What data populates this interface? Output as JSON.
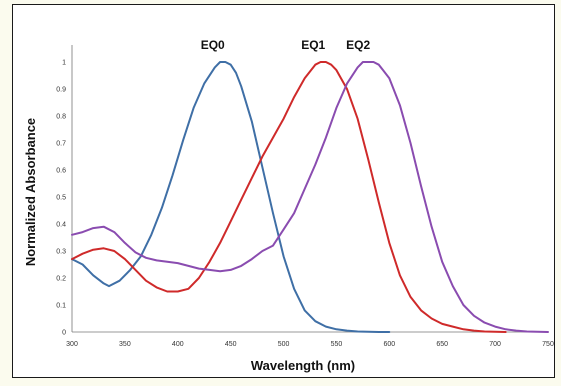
{
  "chart_data": {
    "type": "line",
    "title": "",
    "xlabel": "Wavelength (nm)",
    "ylabel": "Normalized Absorbance",
    "xlim": [
      300,
      750
    ],
    "ylim": [
      0,
      1.0
    ],
    "xticks": [
      "300",
      "350",
      "400",
      "450",
      "500",
      "550",
      "600",
      "650",
      "700",
      "750"
    ],
    "yticks": [
      "0",
      "0.1",
      "0.2",
      "0.3",
      "0.4",
      "0.5",
      "0.6",
      "0.7",
      "0.8",
      "0.9",
      "1"
    ],
    "grid": false,
    "series": [
      {
        "name": "EQ0",
        "color": "#3f6fa6",
        "x": [
          300,
          310,
          320,
          330,
          335,
          345,
          355,
          365,
          375,
          385,
          395,
          405,
          415,
          425,
          435,
          440,
          445,
          450,
          455,
          460,
          470,
          480,
          490,
          500,
          510,
          520,
          530,
          540,
          550,
          560,
          570,
          580,
          590,
          600
        ],
        "y": [
          0.27,
          0.25,
          0.21,
          0.18,
          0.17,
          0.19,
          0.23,
          0.28,
          0.36,
          0.46,
          0.58,
          0.71,
          0.83,
          0.92,
          0.98,
          1.0,
          1.0,
          0.99,
          0.96,
          0.91,
          0.78,
          0.61,
          0.44,
          0.28,
          0.16,
          0.08,
          0.04,
          0.02,
          0.01,
          0.005,
          0.002,
          0.001,
          0.0,
          0.0
        ]
      },
      {
        "name": "EQ1",
        "color": "#cf2a2a",
        "x": [
          300,
          310,
          320,
          330,
          340,
          350,
          360,
          370,
          380,
          390,
          400,
          410,
          420,
          430,
          440,
          450,
          460,
          470,
          480,
          490,
          500,
          510,
          520,
          530,
          535,
          540,
          545,
          550,
          560,
          570,
          580,
          590,
          600,
          610,
          620,
          630,
          640,
          650,
          660,
          670,
          680,
          690,
          700,
          710
        ],
        "y": [
          0.27,
          0.29,
          0.305,
          0.31,
          0.3,
          0.27,
          0.23,
          0.19,
          0.165,
          0.15,
          0.15,
          0.16,
          0.2,
          0.26,
          0.33,
          0.41,
          0.49,
          0.57,
          0.65,
          0.72,
          0.79,
          0.87,
          0.94,
          0.99,
          1.0,
          1.0,
          0.99,
          0.97,
          0.9,
          0.79,
          0.64,
          0.48,
          0.33,
          0.21,
          0.13,
          0.08,
          0.05,
          0.03,
          0.02,
          0.01,
          0.005,
          0.002,
          0.001,
          0.0
        ]
      },
      {
        "name": "EQ2",
        "color": "#8a4cb0",
        "x": [
          300,
          310,
          320,
          330,
          340,
          350,
          360,
          370,
          380,
          390,
          400,
          410,
          420,
          430,
          440,
          450,
          460,
          470,
          480,
          490,
          500,
          510,
          520,
          530,
          540,
          550,
          560,
          570,
          575,
          580,
          585,
          590,
          600,
          610,
          620,
          630,
          640,
          650,
          660,
          670,
          680,
          690,
          700,
          710,
          720,
          730,
          740,
          750
        ],
        "y": [
          0.36,
          0.37,
          0.385,
          0.39,
          0.37,
          0.33,
          0.295,
          0.275,
          0.265,
          0.26,
          0.255,
          0.245,
          0.235,
          0.23,
          0.225,
          0.23,
          0.245,
          0.27,
          0.3,
          0.32,
          0.38,
          0.44,
          0.53,
          0.62,
          0.72,
          0.83,
          0.92,
          0.98,
          1.0,
          1.0,
          1.0,
          0.99,
          0.94,
          0.84,
          0.7,
          0.54,
          0.39,
          0.26,
          0.17,
          0.1,
          0.06,
          0.035,
          0.02,
          0.01,
          0.005,
          0.002,
          0.001,
          0.0
        ]
      }
    ]
  }
}
